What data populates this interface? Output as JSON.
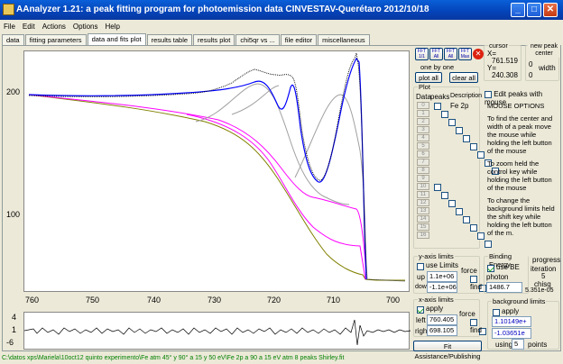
{
  "window": {
    "title": "AAnalyzer 1.21: a peak fitting program for photoemission data     CINVESTAV-Querétaro   2012/10/18",
    "minimize": "_",
    "maximize": "□",
    "close": "✕"
  },
  "menu": [
    "File",
    "Edit",
    "Actions",
    "Options",
    "Help"
  ],
  "tabs": [
    "data",
    "fitting parameters",
    "data and fits plot",
    "results table",
    "results plot",
    "chi5qr vs ...",
    "file editor",
    "miscellaneous"
  ],
  "active_tab": 2,
  "plot": {
    "y_ticks": [
      "200",
      "100"
    ],
    "x_ticks": [
      "760",
      "750",
      "740",
      "730",
      "720",
      "710",
      "700"
    ],
    "resid_ticks": [
      "4",
      "1",
      "-6"
    ]
  },
  "toolbar": {
    "icon1": "FFT 1/1",
    "icon2": "FFT All",
    "icon3": "FFT All",
    "icon4": "FFT Max",
    "one_by_one": "one by one",
    "plot_all": "plot all",
    "clear_all": "clear all"
  },
  "cursor": {
    "title": "cursor",
    "x_label": "X=",
    "x_value": "761.519",
    "y_label": "Y=",
    "y_value": "240.308"
  },
  "new_peak": {
    "title": "new peak center",
    "center": "0",
    "width_label": "width",
    "width": "0"
  },
  "plot_group": {
    "title": "Plot",
    "col_data": "Data",
    "col_peaks": "peaks",
    "col_desc": "Description",
    "rows": [
      "0",
      "1",
      "2",
      "3",
      "4",
      "5",
      "6",
      "7",
      "8",
      "9",
      "10",
      "11",
      "12",
      "13",
      "14",
      "15",
      "16"
    ],
    "description": "Fe 2p"
  },
  "edit_peaks": {
    "label": "Edit peaks with mouse",
    "checked": false
  },
  "mouse_options": {
    "title": "MOUSE OPTIONS",
    "p1": "To find the center and width of a peak move the mouse while holding the left button of the mouse",
    "p2": "To zoom held the control key while holding the left button of the mouse",
    "p3": "To change the background limits held the shift key while holding the left button of the m."
  },
  "y_axis": {
    "title": "y-axis limits",
    "use": "use Limits",
    "up_label": "up",
    "up": "1.1e+06",
    "force": "force",
    "down_label": "down",
    "down": "-1.1e+06",
    "find": "find"
  },
  "binding": {
    "title": "Binding Energy",
    "use_be": "use BE",
    "photon_label": "photon energy",
    "photon": "1486.7"
  },
  "progress": {
    "title": "progress",
    "iteration_label": "iteration",
    "iteration": "5",
    "chisq_label": "chisq",
    "chisq": "5.351e-05"
  },
  "x_axis": {
    "title": "x-axis limits",
    "apply": "apply",
    "force": "force",
    "left_label": "left",
    "left": "760.405",
    "right_label": "right",
    "right": "698.105",
    "find": "find"
  },
  "background": {
    "title": "background limits",
    "apply": "apply",
    "v1": "1.10149e+",
    "v2": "-1.03651e",
    "using_label": "using",
    "using": "5",
    "points_label": "points"
  },
  "fit_assist": "Fit Assistance/Publishing",
  "status": "C:\\datos xps\\Mariela\\10oct12 quinto experimento\\Fe atm  45° y 90° a 15 y 50 eV\\Fe 2p a 90 a 15 eV atm 8 peaks Shirley.fit",
  "colors": {
    "data": "#000000",
    "envelope": "#0000ff",
    "bg": "#808000",
    "peak_gray": "#a0a0a0",
    "peak_magenta": "#ff00ff"
  }
}
